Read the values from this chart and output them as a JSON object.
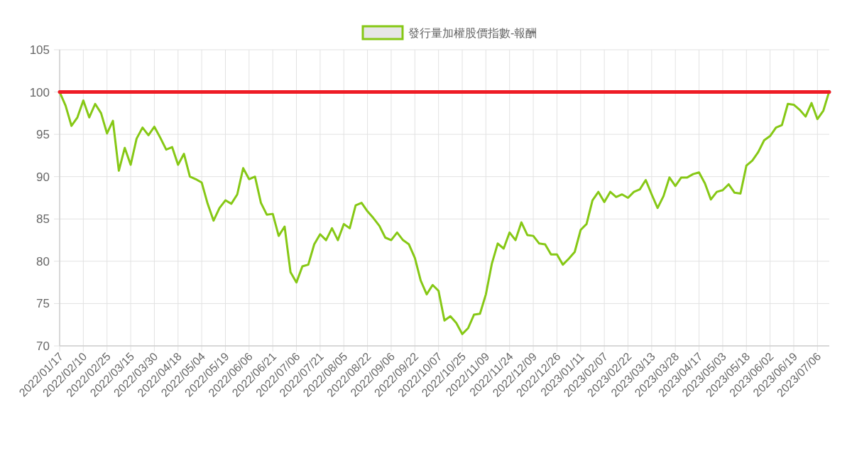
{
  "chart_data": {
    "type": "line",
    "categories": [
      "2022/01/17",
      null,
      null,
      null,
      "2022/02/10",
      null,
      null,
      null,
      "2022/02/25",
      null,
      null,
      null,
      "2022/03/15",
      null,
      null,
      null,
      "2022/03/30",
      null,
      null,
      null,
      "2022/04/18",
      null,
      null,
      null,
      "2022/05/04",
      null,
      null,
      null,
      "2022/05/19",
      null,
      null,
      null,
      "2022/06/06",
      null,
      null,
      null,
      "2022/06/21",
      null,
      null,
      null,
      "2022/07/06",
      null,
      null,
      null,
      "2022/07/21",
      null,
      null,
      null,
      "2022/08/05",
      null,
      null,
      null,
      "2022/08/22",
      null,
      null,
      null,
      "2022/09/06",
      null,
      null,
      null,
      "2022/09/22",
      null,
      null,
      null,
      "2022/10/07",
      null,
      null,
      null,
      "2022/10/25",
      null,
      null,
      null,
      "2022/11/09",
      null,
      null,
      null,
      "2022/11/24",
      null,
      null,
      null,
      "2022/12/09",
      null,
      null,
      null,
      "2022/12/26",
      null,
      null,
      null,
      "2023/01/11",
      null,
      null,
      null,
      "2023/02/07",
      null,
      null,
      null,
      "2023/02/22",
      null,
      null,
      null,
      "2023/03/13",
      null,
      null,
      null,
      "2023/03/28",
      null,
      null,
      null,
      "2023/04/17",
      null,
      null,
      null,
      "2023/05/03",
      null,
      null,
      null,
      "2023/05/18",
      null,
      null,
      null,
      "2023/06/02",
      null,
      null,
      null,
      "2023/06/19",
      null,
      null,
      null,
      "2023/07/06",
      null,
      null
    ],
    "series": [
      {
        "name": "發行量加權股價指數-報酬",
        "color": "#86c815",
        "values": [
          100,
          98.4,
          96.0,
          97.0,
          99.0,
          97.0,
          98.6,
          97.5,
          95.1,
          96.6,
          90.7,
          93.4,
          91.4,
          94.5,
          95.8,
          94.9,
          95.9,
          94.6,
          93.2,
          93.5,
          91.4,
          92.7,
          90.0,
          89.7,
          89.3,
          86.8,
          84.8,
          86.3,
          87.2,
          86.8,
          87.9,
          91.0,
          89.7,
          90.0,
          86.9,
          85.5,
          85.6,
          83.0,
          84.1,
          78.7,
          77.5,
          79.4,
          79.6,
          82.0,
          83.2,
          82.5,
          83.9,
          82.5,
          84.4,
          83.9,
          86.6,
          86.9,
          85.9,
          85.1,
          84.2,
          82.8,
          82.5,
          83.4,
          82.5,
          82.0,
          80.4,
          77.7,
          76.1,
          77.2,
          76.5,
          73.0,
          73.5,
          72.7,
          71.4,
          72.1,
          73.7,
          73.8,
          76.1,
          79.7,
          82.1,
          81.5,
          83.4,
          82.5,
          84.6,
          83.1,
          83.0,
          82.1,
          82.0,
          80.8,
          80.8,
          79.6,
          80.3,
          81.1,
          83.7,
          84.4,
          87.2,
          88.2,
          87.0,
          88.2,
          87.6,
          87.9,
          87.5,
          88.2,
          88.5,
          89.6,
          87.9,
          86.3,
          87.7,
          89.9,
          88.9,
          89.9,
          89.9,
          90.3,
          90.5,
          89.2,
          87.3,
          88.2,
          88.4,
          89.1,
          88.1,
          88.0,
          91.3,
          91.9,
          92.9,
          94.3,
          94.8,
          95.8,
          96.1,
          98.6,
          98.5,
          97.9,
          97.1,
          98.7,
          96.8,
          97.8,
          100.1
        ]
      }
    ],
    "ref_lines": [
      {
        "axis": "y",
        "value": 100,
        "color": "#ee1c25"
      }
    ],
    "ylim": [
      70,
      105
    ],
    "yticks": [
      70,
      75,
      80,
      85,
      90,
      95,
      100,
      105
    ],
    "grid": true,
    "legend": "top"
  }
}
